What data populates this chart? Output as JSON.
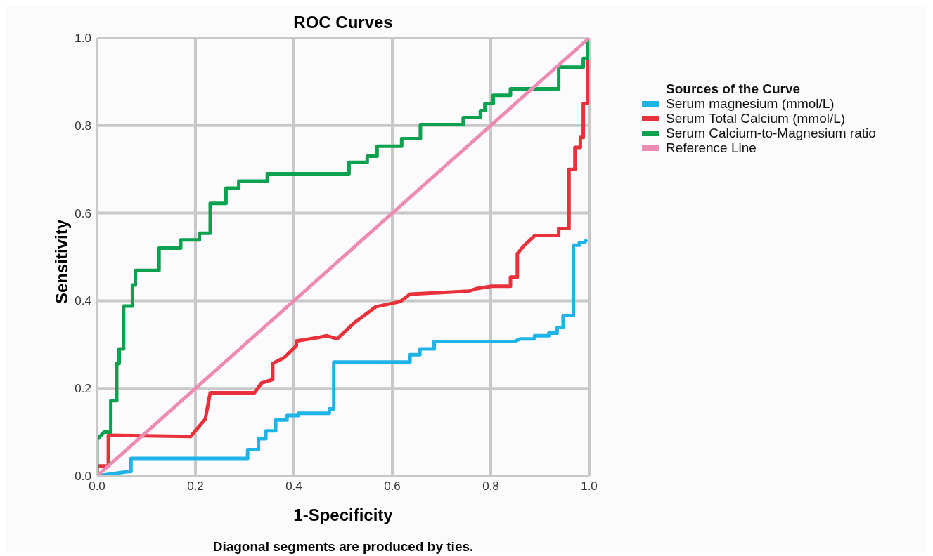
{
  "chart_data": {
    "type": "line",
    "title": "ROC Curves",
    "xlabel": "1-Specificity",
    "ylabel": "Sensitivity",
    "legend_title": "Sources of the Curve",
    "annotations": [
      "Diagonal segments are produced by ties."
    ],
    "xlim": [
      0,
      1
    ],
    "ylim": [
      0,
      1
    ],
    "xticks": [
      {
        "value": 0,
        "label": "0.0"
      },
      0.2,
      0.4,
      0.6,
      0.8,
      {
        "value": 1,
        "label": "1.0"
      }
    ],
    "yticks": [
      {
        "value": 0,
        "label": "0.0"
      },
      0.2,
      0.4,
      0.6,
      0.8,
      {
        "value": 1,
        "label": "1.0"
      }
    ],
    "grid": true,
    "legend": "right",
    "marker": "none",
    "line_style": "solid",
    "series": [
      {
        "name": "Serum magnesium (mmol/L)",
        "color": "#1eb4e8",
        "x": [
          0,
          0.063,
          0.069,
          0.069,
          0.306,
          0.306,
          0.328,
          0.328,
          0.343,
          0.343,
          0.363,
          0.363,
          0.386,
          0.386,
          0.409,
          0.409,
          0.472,
          0.472,
          0.481,
          0.481,
          0.636,
          0.636,
          0.656,
          0.656,
          0.685,
          0.685,
          0.848,
          0.86,
          0.889,
          0.889,
          0.918,
          0.918,
          0.935,
          0.935,
          0.947,
          0.947,
          0.968,
          0.968,
          0.98,
          0.98,
          0.991,
          0.995
        ],
        "values": [
          0,
          0.01,
          0.01,
          0.04,
          0.04,
          0.06,
          0.06,
          0.085,
          0.085,
          0.103,
          0.103,
          0.128,
          0.128,
          0.138,
          0.138,
          0.143,
          0.143,
          0.153,
          0.153,
          0.26,
          0.26,
          0.277,
          0.277,
          0.29,
          0.29,
          0.307,
          0.307,
          0.313,
          0.313,
          0.32,
          0.32,
          0.326,
          0.326,
          0.339,
          0.339,
          0.366,
          0.366,
          0.527,
          0.527,
          0.533,
          0.533,
          0.54
        ]
      },
      {
        "name": "Serum Total Calcium (mmol/L)",
        "color": "#e8313a",
        "x": [
          0,
          0,
          0.023,
          0.023,
          0.19,
          0.22,
          0.23,
          0.32,
          0.334,
          0.357,
          0.357,
          0.38,
          0.405,
          0.405,
          0.45,
          0.467,
          0.488,
          0.523,
          0.523,
          0.566,
          0.566,
          0.616,
          0.616,
          0.636,
          0.636,
          0.756,
          0.772,
          0.802,
          0.84,
          0.84,
          0.854,
          0.854,
          0.866,
          0.89,
          0.938,
          0.938,
          0.959,
          0.959,
          0.971,
          0.971,
          0.982,
          0.982,
          0.988,
          0.988,
          0.997,
          0.997
        ],
        "values": [
          0.007,
          0.023,
          0.023,
          0.093,
          0.09,
          0.13,
          0.19,
          0.19,
          0.212,
          0.22,
          0.257,
          0.27,
          0.297,
          0.308,
          0.316,
          0.32,
          0.313,
          0.35,
          0.35,
          0.386,
          0.386,
          0.398,
          0.398,
          0.415,
          0.415,
          0.422,
          0.428,
          0.433,
          0.433,
          0.454,
          0.454,
          0.507,
          0.524,
          0.549,
          0.549,
          0.565,
          0.565,
          0.7,
          0.7,
          0.75,
          0.75,
          0.773,
          0.773,
          0.85,
          0.85,
          1
        ]
      },
      {
        "name": "Serum Calcium-to-Magnesium ratio",
        "color": "#0ca14f",
        "x": [
          0,
          0,
          0.014,
          0.028,
          0.028,
          0.04,
          0.04,
          0.045,
          0.045,
          0.054,
          0.054,
          0.072,
          0.072,
          0.078,
          0.078,
          0.126,
          0.126,
          0.17,
          0.17,
          0.208,
          0.208,
          0.23,
          0.23,
          0.262,
          0.262,
          0.288,
          0.288,
          0.346,
          0.346,
          0.512,
          0.512,
          0.549,
          0.549,
          0.569,
          0.569,
          0.619,
          0.619,
          0.657,
          0.657,
          0.744,
          0.744,
          0.779,
          0.779,
          0.788,
          0.788,
          0.805,
          0.805,
          0.84,
          0.84,
          0.938,
          0.938,
          0.988,
          0.988,
          0.997,
          0.997
        ],
        "values": [
          0,
          0.083,
          0.1,
          0.1,
          0.172,
          0.172,
          0.257,
          0.257,
          0.29,
          0.29,
          0.388,
          0.388,
          0.436,
          0.436,
          0.469,
          0.469,
          0.52,
          0.52,
          0.539,
          0.539,
          0.554,
          0.554,
          0.622,
          0.622,
          0.657,
          0.657,
          0.673,
          0.673,
          0.69,
          0.69,
          0.716,
          0.716,
          0.73,
          0.73,
          0.753,
          0.753,
          0.77,
          0.77,
          0.802,
          0.802,
          0.818,
          0.818,
          0.834,
          0.834,
          0.85,
          0.85,
          0.869,
          0.869,
          0.884,
          0.884,
          0.933,
          0.933,
          0.953,
          0.953,
          1
        ]
      },
      {
        "name": "Reference Line",
        "color": "#ee8bb5",
        "x": [
          0,
          1
        ],
        "values": [
          0,
          1
        ]
      }
    ]
  }
}
